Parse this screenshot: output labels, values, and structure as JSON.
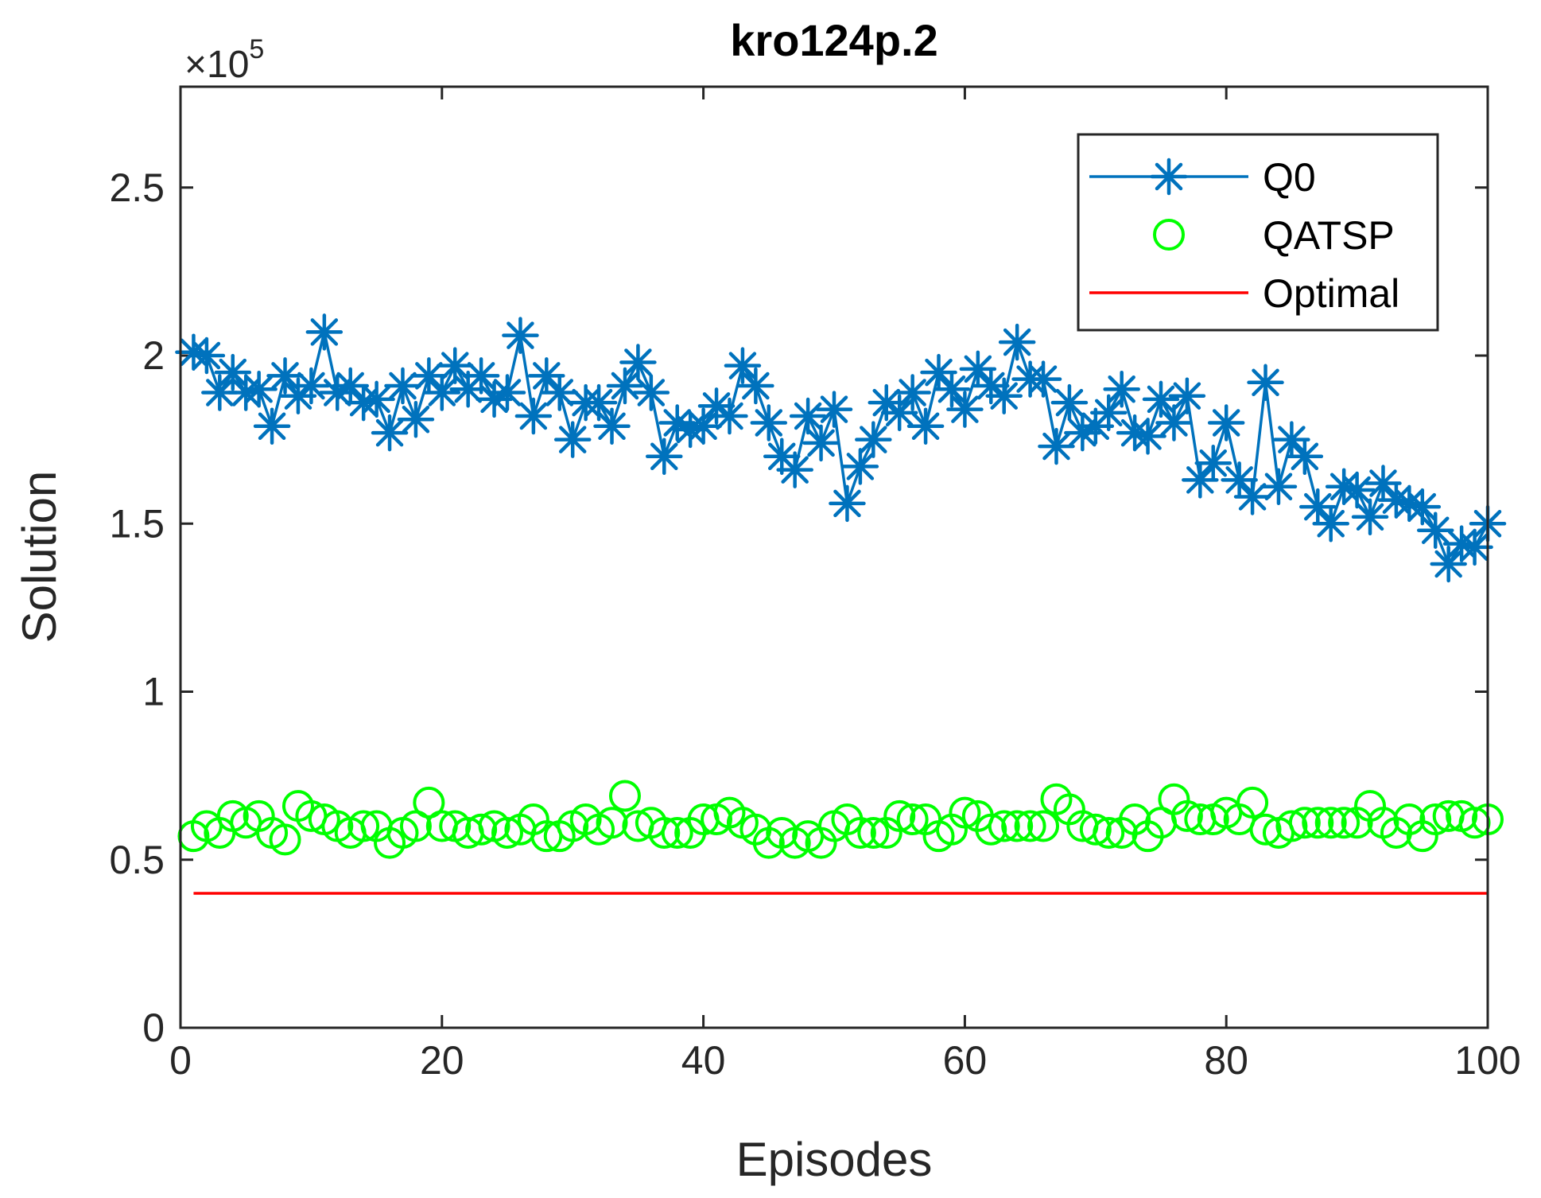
{
  "chart_data": {
    "type": "line",
    "title": "kro124p.2",
    "xlabel": "Episodes",
    "ylabel": "Solution",
    "xlim": [
      0,
      100
    ],
    "ylim": [
      0,
      2.8
    ],
    "y_exponent_times": "×10",
    "y_exponent_power": "5",
    "xticks": [
      0,
      20,
      40,
      60,
      80,
      100
    ],
    "xtick_labels": [
      "0",
      "20",
      "40",
      "60",
      "80",
      "100"
    ],
    "yticks": [
      0,
      0.5,
      1,
      1.5,
      2,
      2.5
    ],
    "ytick_labels": [
      "0",
      "0.5",
      "1",
      "1.5",
      "2",
      "2.5"
    ],
    "legend_position": "top-right",
    "series": [
      {
        "name": "Q0",
        "style": "line-star",
        "color": "#0072BD",
        "x": [
          1,
          2,
          3,
          4,
          5,
          6,
          7,
          8,
          9,
          10,
          11,
          12,
          13,
          14,
          15,
          16,
          17,
          18,
          19,
          20,
          21,
          22,
          23,
          24,
          25,
          26,
          27,
          28,
          29,
          30,
          31,
          32,
          33,
          34,
          35,
          36,
          37,
          38,
          39,
          40,
          41,
          42,
          43,
          44,
          45,
          46,
          47,
          48,
          49,
          50,
          51,
          52,
          53,
          54,
          55,
          56,
          57,
          58,
          59,
          60,
          61,
          62,
          63,
          64,
          65,
          66,
          67,
          68,
          69,
          70,
          71,
          72,
          73,
          74,
          75,
          76,
          77,
          78,
          79,
          80,
          81,
          82,
          83,
          84,
          85,
          86,
          87,
          88,
          89,
          90,
          91,
          92,
          93,
          94,
          95,
          96,
          97,
          98,
          99,
          100
        ],
        "values": [
          2.01,
          2.0,
          1.89,
          1.95,
          1.89,
          1.9,
          1.79,
          1.94,
          1.88,
          1.91,
          2.07,
          1.89,
          1.91,
          1.86,
          1.87,
          1.77,
          1.91,
          1.81,
          1.94,
          1.89,
          1.97,
          1.9,
          1.94,
          1.87,
          1.89,
          2.06,
          1.82,
          1.94,
          1.89,
          1.75,
          1.86,
          1.86,
          1.79,
          1.91,
          1.98,
          1.89,
          1.7,
          1.8,
          1.78,
          1.79,
          1.85,
          1.82,
          1.97,
          1.91,
          1.8,
          1.7,
          1.66,
          1.82,
          1.74,
          1.84,
          1.56,
          1.67,
          1.75,
          1.86,
          1.83,
          1.89,
          1.79,
          1.95,
          1.9,
          1.84,
          1.96,
          1.91,
          1.88,
          2.04,
          1.93,
          1.93,
          1.73,
          1.86,
          1.77,
          1.79,
          1.83,
          1.9,
          1.77,
          1.76,
          1.87,
          1.8,
          1.88,
          1.63,
          1.68,
          1.8,
          1.63,
          1.58,
          1.92,
          1.61,
          1.75,
          1.7,
          1.55,
          1.5,
          1.61,
          1.6,
          1.52,
          1.62,
          1.57,
          1.56,
          1.55,
          1.48,
          1.38,
          1.44,
          1.43,
          1.5
        ]
      },
      {
        "name": "QATSP",
        "style": "marker-circle",
        "color": "#00FF00",
        "x": [
          1,
          2,
          3,
          4,
          5,
          6,
          7,
          8,
          9,
          10,
          11,
          12,
          13,
          14,
          15,
          16,
          17,
          18,
          19,
          20,
          21,
          22,
          23,
          24,
          25,
          26,
          27,
          28,
          29,
          30,
          31,
          32,
          33,
          34,
          35,
          36,
          37,
          38,
          39,
          40,
          41,
          42,
          43,
          44,
          45,
          46,
          47,
          48,
          49,
          50,
          51,
          52,
          53,
          54,
          55,
          56,
          57,
          58,
          59,
          60,
          61,
          62,
          63,
          64,
          65,
          66,
          67,
          68,
          69,
          70,
          71,
          72,
          73,
          74,
          75,
          76,
          77,
          78,
          79,
          80,
          81,
          82,
          83,
          84,
          85,
          86,
          87,
          88,
          89,
          90,
          91,
          92,
          93,
          94,
          95,
          96,
          97,
          98,
          99,
          100
        ],
        "values": [
          0.57,
          0.6,
          0.58,
          0.63,
          0.61,
          0.63,
          0.58,
          0.56,
          0.66,
          0.63,
          0.62,
          0.6,
          0.58,
          0.6,
          0.6,
          0.55,
          0.58,
          0.6,
          0.67,
          0.6,
          0.6,
          0.58,
          0.59,
          0.6,
          0.58,
          0.59,
          0.62,
          0.57,
          0.57,
          0.6,
          0.62,
          0.59,
          0.61,
          0.69,
          0.6,
          0.61,
          0.58,
          0.58,
          0.58,
          0.62,
          0.62,
          0.64,
          0.61,
          0.59,
          0.55,
          0.58,
          0.55,
          0.57,
          0.55,
          0.6,
          0.62,
          0.58,
          0.58,
          0.58,
          0.63,
          0.62,
          0.62,
          0.57,
          0.59,
          0.64,
          0.63,
          0.59,
          0.6,
          0.6,
          0.6,
          0.6,
          0.68,
          0.65,
          0.6,
          0.59,
          0.58,
          0.58,
          0.62,
          0.57,
          0.61,
          0.68,
          0.63,
          0.62,
          0.62,
          0.64,
          0.62,
          0.67,
          0.59,
          0.58,
          0.6,
          0.61,
          0.61,
          0.61,
          0.61,
          0.61,
          0.66,
          0.61,
          0.58,
          0.62,
          0.57,
          0.62,
          0.63,
          0.63,
          0.61,
          0.62
        ]
      },
      {
        "name": "Optimal",
        "style": "line",
        "color": "#FF0000",
        "x": [
          1,
          100
        ],
        "values": [
          0.4,
          0.4
        ]
      }
    ]
  }
}
